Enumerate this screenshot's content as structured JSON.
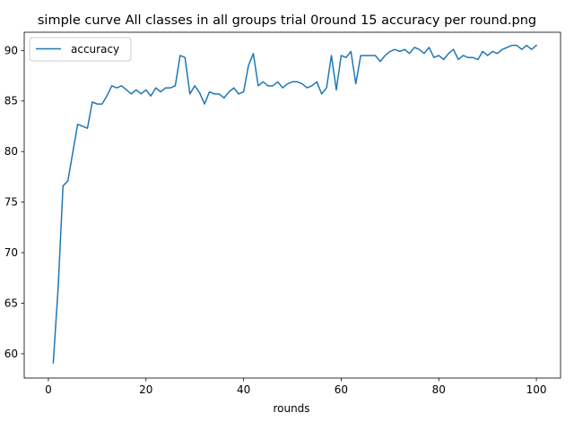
{
  "chart_data": {
    "type": "line",
    "title": "simple curve All classes in all groups trial 0round 15 accuracy per round.png",
    "xlabel": "rounds",
    "ylabel": "",
    "xlim": [
      -4.95,
      104.95
    ],
    "ylim": [
      57.6,
      91.8
    ],
    "xticks": [
      0,
      20,
      40,
      60,
      80,
      100
    ],
    "yticks": [
      60,
      65,
      70,
      75,
      80,
      85,
      90
    ],
    "grid": false,
    "legend_position": "upper left",
    "series": [
      {
        "name": "accuracy",
        "color": "#1f77b4",
        "x": [
          1,
          2,
          3,
          4,
          5,
          6,
          7,
          8,
          9,
          10,
          11,
          12,
          13,
          14,
          15,
          16,
          17,
          18,
          19,
          20,
          21,
          22,
          23,
          24,
          25,
          26,
          27,
          28,
          29,
          30,
          31,
          32,
          33,
          34,
          35,
          36,
          37,
          38,
          39,
          40,
          41,
          42,
          43,
          44,
          45,
          46,
          47,
          48,
          49,
          50,
          51,
          52,
          53,
          54,
          55,
          56,
          57,
          58,
          59,
          60,
          61,
          62,
          63,
          64,
          65,
          66,
          67,
          68,
          69,
          70,
          71,
          72,
          73,
          74,
          75,
          76,
          77,
          78,
          79,
          80,
          81,
          82,
          83,
          84,
          85,
          86,
          87,
          88,
          89,
          90,
          91,
          92,
          93,
          94,
          95,
          96,
          97,
          98,
          99,
          100
        ],
        "values": [
          59.1,
          66.5,
          76.6,
          77.1,
          79.9,
          82.7,
          82.5,
          82.3,
          84.9,
          84.7,
          84.7,
          85.5,
          86.5,
          86.3,
          86.5,
          86.1,
          85.7,
          86.1,
          85.7,
          86.1,
          85.5,
          86.3,
          85.9,
          86.3,
          86.3,
          86.5,
          89.5,
          89.3,
          85.7,
          86.5,
          85.8,
          84.7,
          85.9,
          85.7,
          85.7,
          85.3,
          85.9,
          86.3,
          85.7,
          85.9,
          88.5,
          89.7,
          86.5,
          86.9,
          86.5,
          86.5,
          86.9,
          86.3,
          86.7,
          86.9,
          86.9,
          86.7,
          86.3,
          86.5,
          86.9,
          85.7,
          86.3,
          89.5,
          86.1,
          89.5,
          89.3,
          89.9,
          86.7,
          89.5,
          89.5,
          89.5,
          89.5,
          88.9,
          89.5,
          89.9,
          90.1,
          89.9,
          90.1,
          89.7,
          90.3,
          90.1,
          89.7,
          90.3,
          89.3,
          89.5,
          89.1,
          89.7,
          90.1,
          89.1,
          89.5,
          89.3,
          89.3,
          89.1,
          89.9,
          89.5,
          89.9,
          89.7,
          90.1,
          90.3,
          90.5,
          90.5,
          90.1,
          90.5,
          90.1,
          90.5
        ]
      }
    ]
  }
}
